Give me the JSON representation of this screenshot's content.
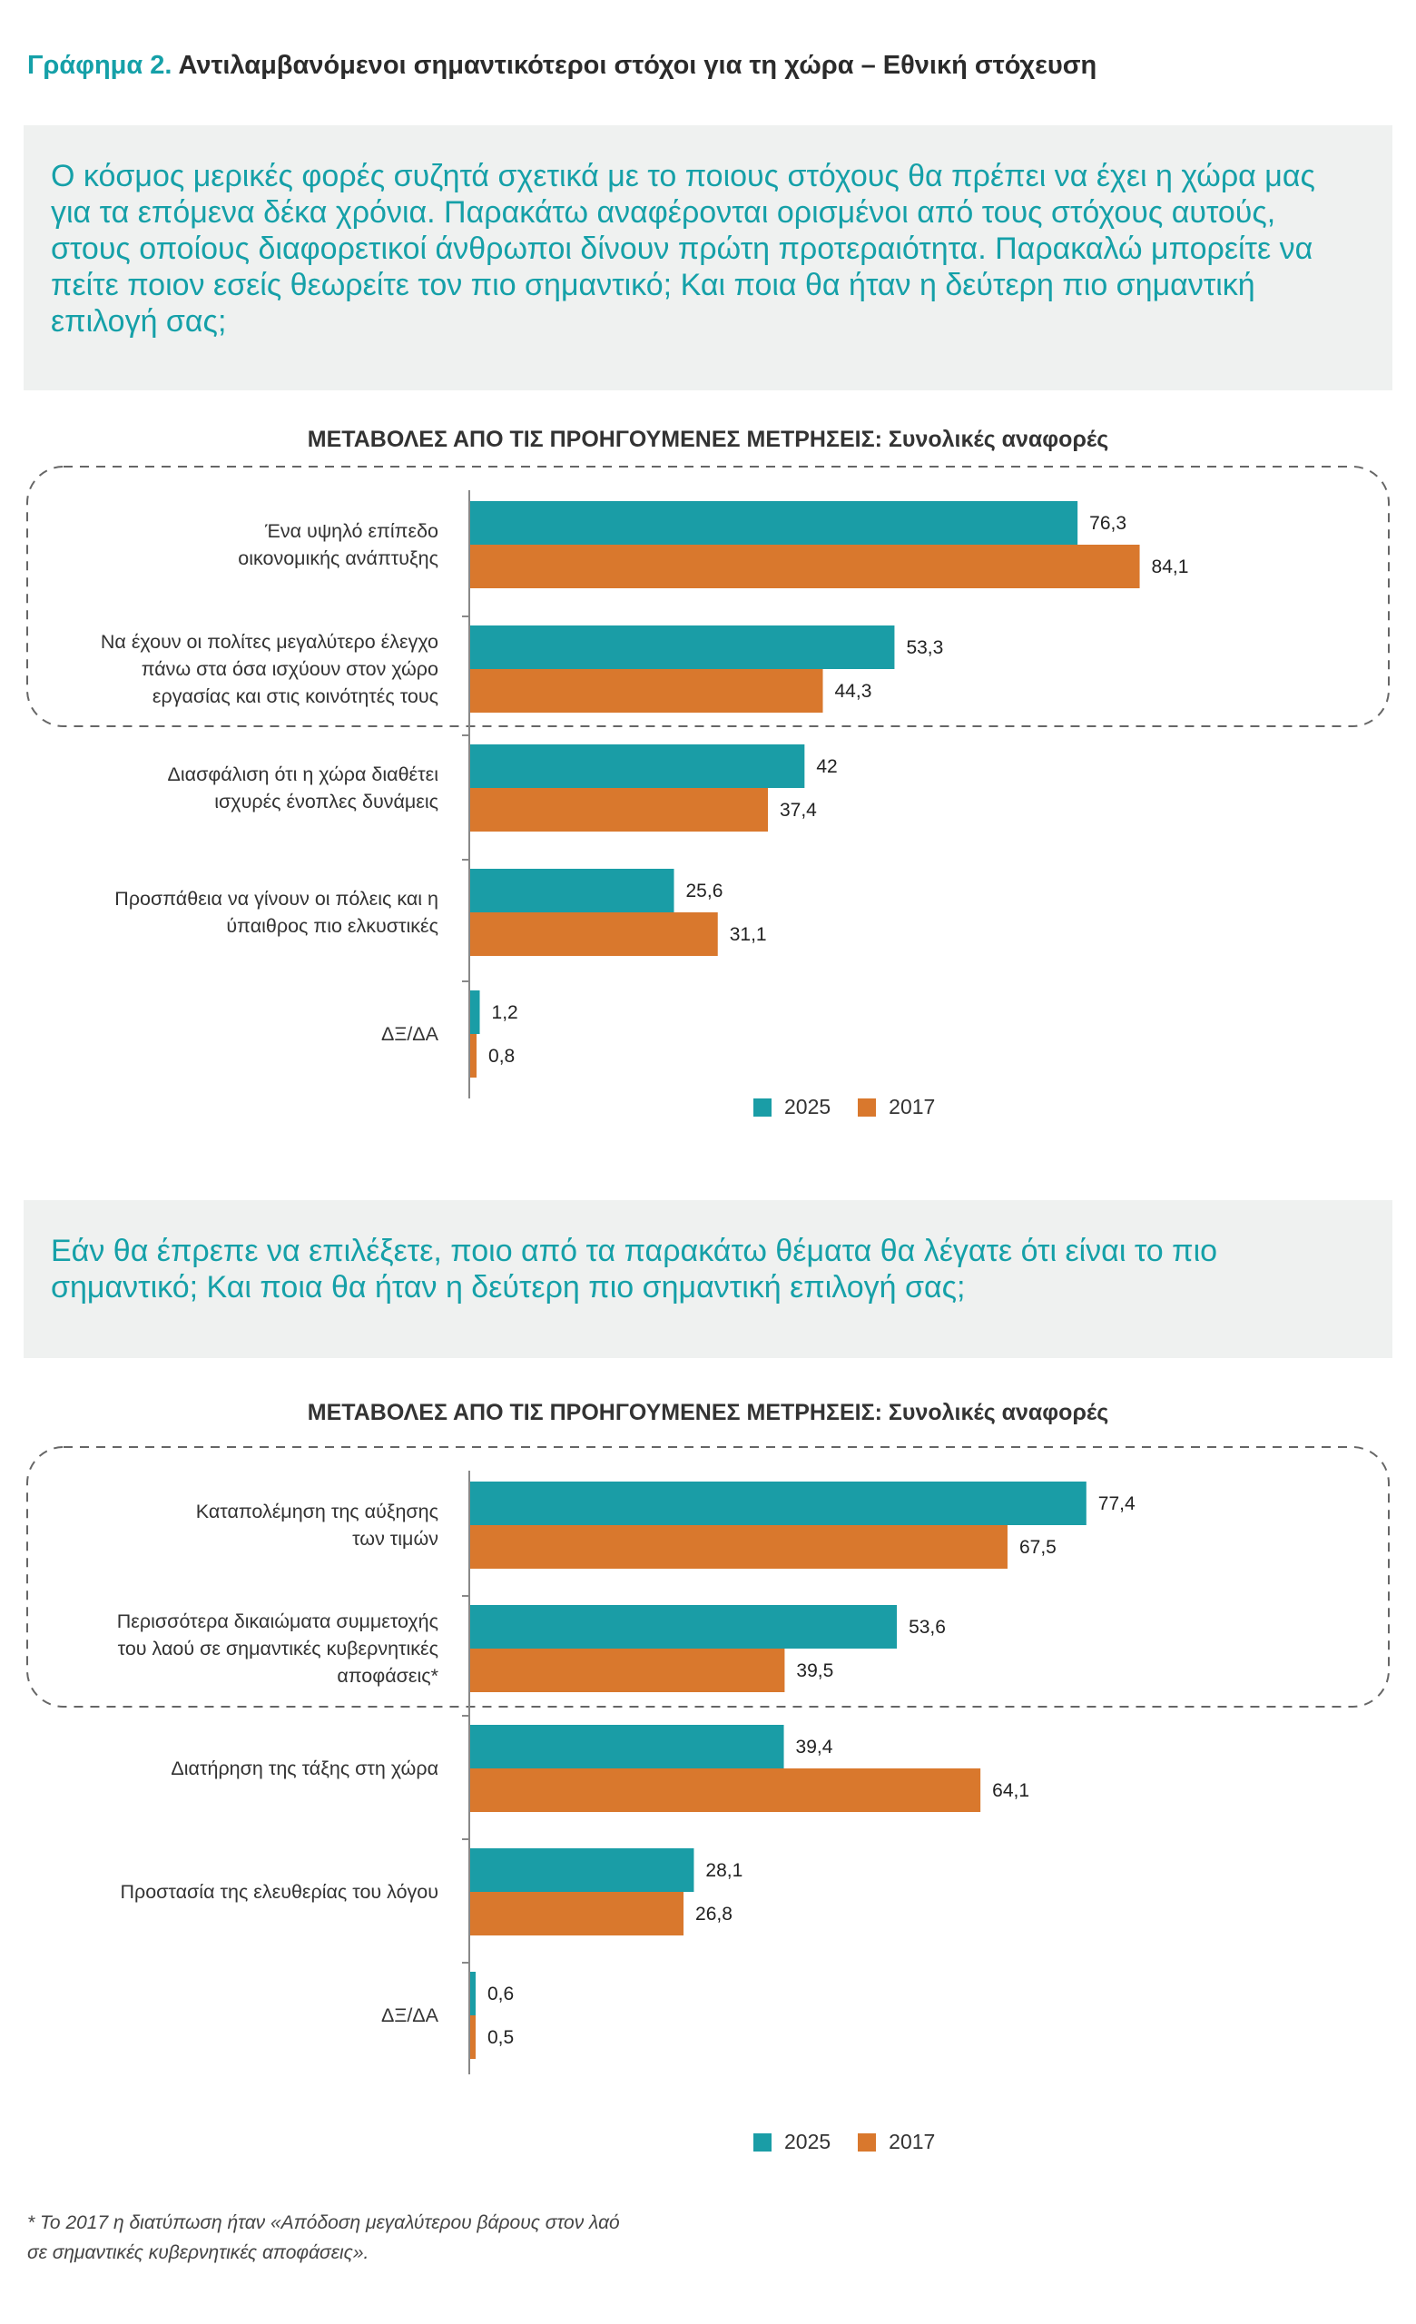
{
  "title": {
    "lead": "Γράφημα 2.",
    "text": "Αντιλαμβανόμενοι σημαντικότεροι στόχοι για τη χώρα – Εθνική στόχευση"
  },
  "questions": [
    "Ο κόσμος μερικές φορές συζητά σχετικά με το ποιους στόχους θα πρέπει να έχει η χώρα μας για τα επόμενα δέκα χρόνια. Παρακάτω αναφέρονται ορισμένοι από τους στόχους αυτούς, στους οποίους διαφορετικοί άνθρωποι δίνουν πρώτη προτεραιότητα. Παρακαλώ μπορείτε να πείτε ποιον εσείς θεωρείτε τον πιο σημαντικό; Και ποια θα ήταν η δεύτερη πιο σημαντική επιλογή σας;",
    "Εάν θα έπρεπε να επιλέξετε, ποιο από τα παρακάτω θέματα θα λέγατε ότι είναι το πιο σημαντικό; Και ποια θα ήταν η δεύτερη πιο σημαντική επιλογή σας;"
  ],
  "colors": {
    "s2025": "#1a9da6",
    "s2017": "#d9782d",
    "question_text": "#15a0a8"
  },
  "chart_data": [
    {
      "type": "bar",
      "orientation": "horizontal",
      "title": "ΜΕΤΑΒΟΛΕΣ ΑΠΟ ΤΙΣ ΠΡΟΗΓΟΥΜΕΝΕΣ ΜΕΤΡΗΣΕΙΣ:",
      "subtitle": "Συνολικές αναφορές",
      "categories": [
        [
          "Ένα υψηλό επίπεδο",
          "οικονομικής ανάπτυξης"
        ],
        [
          "Να έχουν οι πολίτες μεγαλύτερο έλεγχο",
          "πάνω στα όσα ισχύουν στον χώρο",
          "εργασίας και στις κοινότητές τους"
        ],
        [
          "Διασφάλιση ότι η χώρα διαθέτει",
          "ισχυρές ένοπλες δυνάμεις"
        ],
        [
          "Προσπάθεια να γίνουν οι πόλεις και η",
          "ύπαιθρος πιο ελκυστικές"
        ],
        [
          "ΔΞ/ΔΑ"
        ]
      ],
      "series": [
        {
          "name": "2025",
          "values": [
            76.3,
            53.3,
            42,
            25.6,
            1.2
          ],
          "labels": [
            "76,3",
            "53,3",
            "42",
            "25,6",
            "1,2"
          ]
        },
        {
          "name": "2017",
          "values": [
            84.1,
            44.3,
            37.4,
            31.1,
            0.8
          ],
          "labels": [
            "84,1",
            "44,3",
            "37,4",
            "31,1",
            "0,8"
          ]
        }
      ],
      "highlighted_categories": 2,
      "legend": "bottom"
    },
    {
      "type": "bar",
      "orientation": "horizontal",
      "title": "ΜΕΤΑΒΟΛΕΣ ΑΠΟ ΤΙΣ ΠΡΟΗΓΟΥΜΕΝΕΣ ΜΕΤΡΗΣΕΙΣ:",
      "subtitle": "Συνολικές αναφορές",
      "categories": [
        [
          "Καταπολέμηση της αύξησης",
          "των τιμών"
        ],
        [
          "Περισσότερα δικαιώματα συμμετοχής",
          "του λαού σε σημαντικές κυβερνητικές",
          "αποφάσεις*"
        ],
        [
          "Διατήρηση της τάξης στη χώρα"
        ],
        [
          "Προστασία της ελευθερίας του λόγου"
        ],
        [
          "ΔΞ/ΔΑ"
        ]
      ],
      "series": [
        {
          "name": "2025",
          "values": [
            77.4,
            53.6,
            39.4,
            28.1,
            0.6
          ],
          "labels": [
            "77,4",
            "53,6",
            "39,4",
            "28,1",
            "0,6"
          ]
        },
        {
          "name": "2017",
          "values": [
            67.5,
            39.5,
            64.1,
            26.8,
            0.5
          ],
          "labels": [
            "67,5",
            "39,5",
            "64,1",
            "26,8",
            "0,5"
          ]
        }
      ],
      "highlighted_categories": 2,
      "legend": "bottom"
    }
  ],
  "footnote": [
    "* Το 2017 η διατύπωση ήταν «Απόδοση μεγαλύτερου βάρους στον λαό",
    "σε σημαντικές κυβερνητικές αποφάσεις»."
  ]
}
